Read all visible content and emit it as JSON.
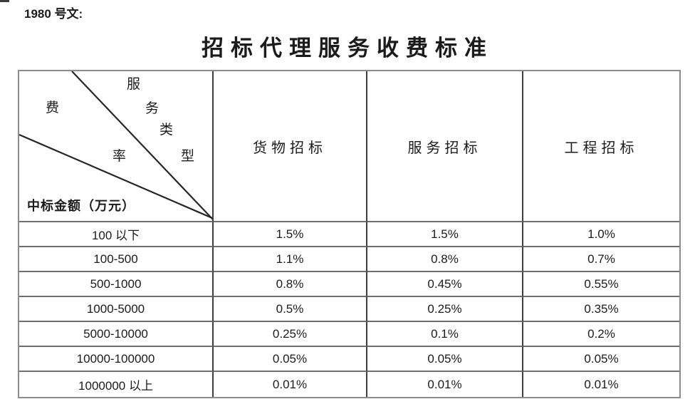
{
  "page": {
    "doc_label": "1980 号文:",
    "title": "招标代理服务收费标准"
  },
  "colors": {
    "text": "#1b1b1b",
    "background": "#ffffff",
    "outer_border": "#8c8c8c",
    "inner_vertical_border": "#3f3f3f",
    "inner_horizontal_border": "#6f6f6f",
    "diagonal_line": "#262626"
  },
  "table": {
    "corner": {
      "diagonal_chars": [
        "服",
        "务",
        "类",
        "型",
        "费",
        "率"
      ],
      "column_axis_label": "服务类型",
      "fee_rate_label": "费率",
      "row_axis_label": "中标金额（万元）"
    },
    "columns": [
      "货物招标",
      "服务招标",
      "工程招标"
    ],
    "rows": [
      {
        "range": "100 以下",
        "values": [
          "1.5%",
          "1.5%",
          "1.0%"
        ]
      },
      {
        "range": "100-500",
        "values": [
          "1.1%",
          "0.8%",
          "0.7%"
        ]
      },
      {
        "range": "500-1000",
        "values": [
          "0.8%",
          "0.45%",
          "0.55%"
        ]
      },
      {
        "range": "1000-5000",
        "values": [
          "0.5%",
          "0.25%",
          "0.35%"
        ]
      },
      {
        "range": "5000-10000",
        "values": [
          "0.25%",
          "0.1%",
          "0.2%"
        ]
      },
      {
        "range": "10000-100000",
        "values": [
          "0.05%",
          "0.05%",
          "0.05%"
        ]
      },
      {
        "range": "1000000 以上",
        "values": [
          "0.01%",
          "0.01%",
          "0.01%"
        ]
      }
    ]
  },
  "chart_data": {
    "type": "table",
    "title": "招标代理服务收费标准",
    "row_axis_label": "中标金额（万元）",
    "column_axis_label": "服务类型",
    "corner_label": "费率",
    "columns": [
      "货物招标",
      "服务招标",
      "工程招标"
    ],
    "rows": [
      "100 以下",
      "100-500",
      "500-1000",
      "1000-5000",
      "5000-10000",
      "10000-100000",
      "1000000 以上"
    ],
    "values_percent": [
      [
        1.5,
        1.5,
        1.0
      ],
      [
        1.1,
        0.8,
        0.7
      ],
      [
        0.8,
        0.45,
        0.55
      ],
      [
        0.5,
        0.25,
        0.35
      ],
      [
        0.25,
        0.1,
        0.2
      ],
      [
        0.05,
        0.05,
        0.05
      ],
      [
        0.01,
        0.01,
        0.01
      ]
    ]
  }
}
